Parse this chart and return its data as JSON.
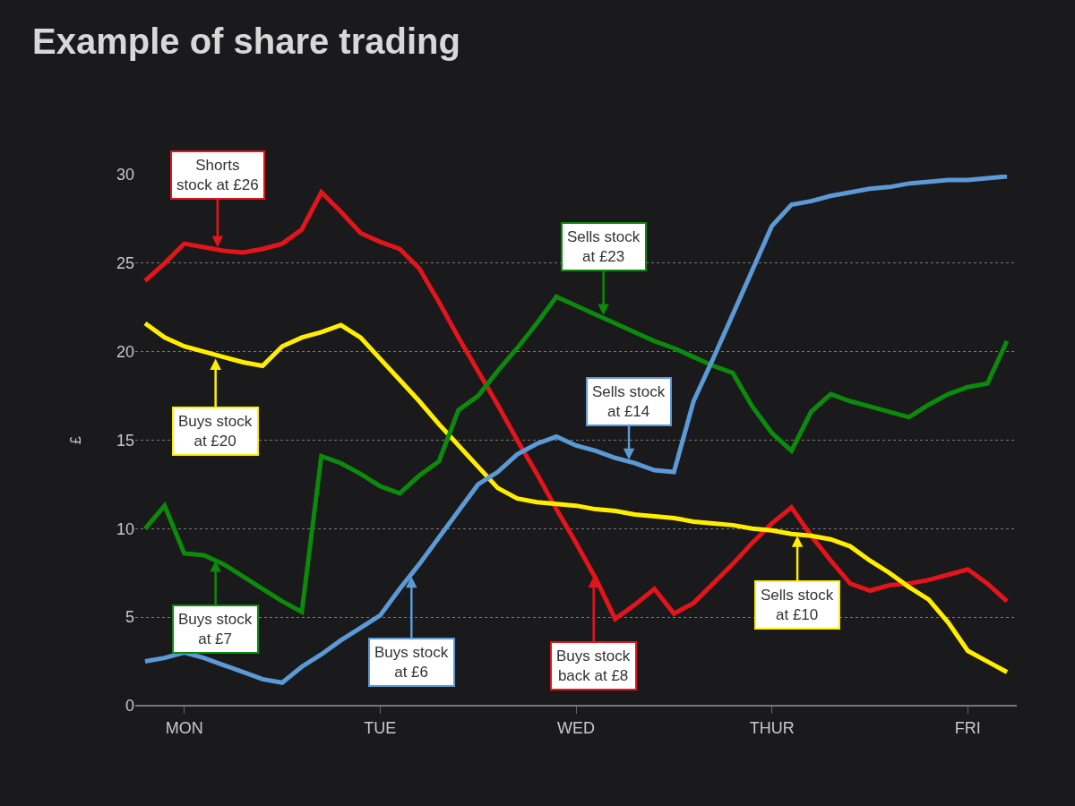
{
  "chart_data": {
    "type": "line",
    "title": "Example of share trading",
    "ylabel": "£",
    "categories": [
      null,
      null,
      "MON",
      null,
      null,
      null,
      null,
      null,
      null,
      null,
      null,
      null,
      "TUE",
      null,
      null,
      null,
      null,
      null,
      null,
      null,
      null,
      null,
      "WED",
      null,
      null,
      null,
      null,
      null,
      null,
      null,
      null,
      null,
      "THUR",
      null,
      null,
      null,
      null,
      null,
      null,
      null,
      null,
      null,
      "FRI",
      null,
      null
    ],
    "ylim": [
      0,
      30
    ],
    "yticks": [
      0,
      5,
      10,
      15,
      20,
      25,
      30
    ],
    "grid": "y",
    "marker": "none",
    "line_style": "solid",
    "series": [
      {
        "color": "#e3151b",
        "values": [
          24.0,
          25.0,
          26.1,
          25.9,
          25.7,
          25.6,
          25.8,
          26.1,
          26.9,
          29.0,
          27.9,
          26.7,
          26.2,
          25.8,
          24.7,
          22.8,
          20.8,
          18.9,
          17.0,
          15.0,
          13.1,
          11.1,
          9.2,
          7.2,
          4.9,
          5.7,
          6.6,
          5.2,
          5.8,
          6.9,
          8.0,
          9.2,
          10.3,
          11.2,
          9.6,
          8.2,
          6.9,
          6.5,
          6.8,
          6.9,
          7.1,
          7.4,
          7.7,
          6.9,
          5.9
        ]
      },
      {
        "color": "#ffee00",
        "values": [
          21.6,
          20.8,
          20.3,
          20.0,
          19.7,
          19.4,
          19.2,
          20.3,
          20.8,
          21.1,
          21.5,
          20.8,
          19.6,
          18.4,
          17.2,
          15.9,
          14.7,
          13.5,
          12.3,
          11.7,
          11.5,
          11.4,
          11.3,
          11.1,
          11.0,
          10.8,
          10.7,
          10.6,
          10.4,
          10.3,
          10.2,
          10.0,
          9.9,
          9.7,
          9.6,
          9.4,
          9.0,
          8.2,
          7.5,
          6.7,
          6.0,
          4.7,
          3.1,
          2.5,
          1.9
        ]
      },
      {
        "color": "#0b8a0b",
        "values": [
          10.0,
          11.3,
          8.6,
          8.5,
          8.0,
          7.3,
          6.6,
          5.9,
          5.3,
          14.1,
          13.7,
          13.1,
          12.4,
          12.0,
          13.0,
          13.8,
          16.7,
          17.5,
          18.9,
          20.2,
          21.6,
          23.1,
          22.6,
          22.1,
          21.6,
          21.1,
          20.6,
          20.2,
          19.7,
          19.2,
          18.8,
          16.9,
          15.4,
          14.4,
          16.6,
          17.6,
          17.2,
          16.9,
          16.6,
          16.3,
          17.0,
          17.6,
          18.0,
          18.2,
          20.6
        ]
      },
      {
        "color": "#5b9ad6",
        "values": [
          2.5,
          2.7,
          3.0,
          2.7,
          2.3,
          1.9,
          1.5,
          1.3,
          2.2,
          2.9,
          3.7,
          4.4,
          5.1,
          6.6,
          8.0,
          9.5,
          11.0,
          12.5,
          13.2,
          14.2,
          14.8,
          15.2,
          14.7,
          14.4,
          14.0,
          13.7,
          13.3,
          13.2,
          17.2,
          19.6,
          22.1,
          24.6,
          27.1,
          28.3,
          28.5,
          28.8,
          29.0,
          29.2,
          29.3,
          29.5,
          29.6,
          29.7,
          29.7,
          29.8,
          29.9
        ]
      }
    ],
    "annotations": [
      {
        "text": "Shorts\nstock at £26",
        "y": 25.8
      },
      {
        "text": "Buys stock\nat £20",
        "y": 19.7
      },
      {
        "text": "Buys stock\nat £7",
        "y": 8.3
      },
      {
        "text": "Buys stock\nat £6",
        "y": 7.4
      },
      {
        "text": "Buys stock\nback at £8",
        "y": 7.4
      },
      {
        "text": "Sells stock\nat £23",
        "y": 21.95
      },
      {
        "text": "Sells stock\nat £14",
        "y": 13.8
      },
      {
        "text": "Sells stock\nat £10",
        "y": 9.7
      }
    ]
  }
}
